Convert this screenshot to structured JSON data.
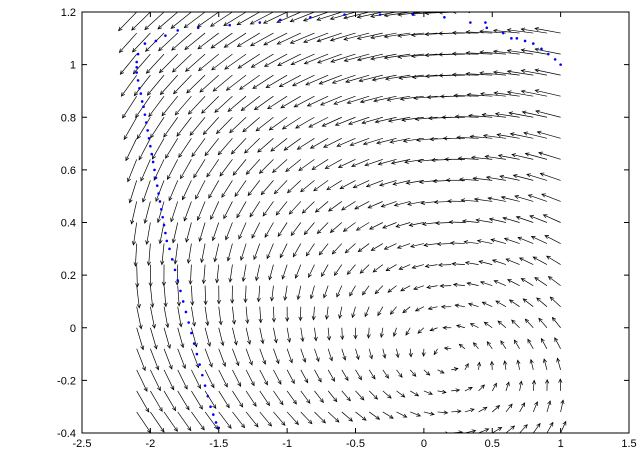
{
  "chart_data": {
    "type": "scatter",
    "title": "",
    "xlabel": "",
    "ylabel": "",
    "xlim": [
      -2.5,
      1.5
    ],
    "ylim": [
      -0.4,
      1.2
    ],
    "x_ticks": [
      "-2.5",
      "-2",
      "-1.5",
      "-1",
      "-0.5",
      "0",
      "0.5",
      "1",
      "1.5"
    ],
    "y_ticks": [
      "-0.4",
      "-0.2",
      "0",
      "0.2",
      "0.4",
      "0.6",
      "0.8",
      "1",
      "1.2"
    ],
    "grid": false,
    "legend": "none",
    "colors": {
      "trajectory": "#0000ff",
      "arrows": "#000000"
    },
    "vector_field": {
      "x_start": -2.1,
      "x_end": 1.0,
      "x_step": 0.1,
      "y_start": -0.4,
      "y_end": 1.2,
      "y_step": 0.08
    },
    "series": [
      {
        "points": [
          [
            1.0,
            1.0
          ],
          [
            0.96,
            1.02
          ],
          [
            0.91,
            1.04
          ],
          [
            0.86,
            1.06
          ],
          [
            0.8,
            1.08
          ],
          [
            0.74,
            1.09
          ],
          [
            0.68,
            1.1
          ],
          [
            0.64,
            1.1
          ],
          [
            0.58,
            1.12
          ],
          [
            0.46,
            1.14
          ],
          [
            0.45,
            1.16
          ],
          [
            0.34,
            1.16
          ],
          [
            0.15,
            1.18
          ],
          [
            -0.08,
            1.19
          ],
          [
            -0.32,
            1.19
          ],
          [
            -0.58,
            1.19
          ],
          [
            -0.83,
            1.18
          ],
          [
            -1.05,
            1.17
          ],
          [
            -1.2,
            1.16
          ],
          [
            -1.42,
            1.15
          ],
          [
            -1.65,
            1.14
          ],
          [
            -1.8,
            1.13
          ],
          [
            -1.89,
            1.11
          ],
          [
            -1.96,
            1.09
          ],
          [
            -2.04,
            1.08
          ],
          [
            -2.09,
            1.04
          ],
          [
            -2.1,
            1.01
          ],
          [
            -2.1,
            0.99
          ],
          [
            -2.1,
            0.97
          ],
          [
            -2.09,
            0.94
          ],
          [
            -2.08,
            0.91
          ],
          [
            -2.07,
            0.89
          ],
          [
            -2.06,
            0.86
          ],
          [
            -2.05,
            0.84
          ],
          [
            -2.04,
            0.81
          ],
          [
            -2.03,
            0.78
          ],
          [
            -2.02,
            0.75
          ],
          [
            -2.01,
            0.72
          ],
          [
            -2.0,
            0.69
          ],
          [
            -1.99,
            0.66
          ],
          [
            -1.98,
            0.63
          ],
          [
            -1.97,
            0.6
          ],
          [
            -1.96,
            0.57
          ],
          [
            -1.95,
            0.54
          ],
          [
            -1.94,
            0.51
          ],
          [
            -1.93,
            0.48
          ],
          [
            -1.92,
            0.45
          ],
          [
            -1.91,
            0.42
          ],
          [
            -1.9,
            0.39
          ],
          [
            -1.89,
            0.36
          ],
          [
            -1.88,
            0.33
          ],
          [
            -1.86,
            0.3
          ],
          [
            -1.84,
            0.26
          ],
          [
            -1.82,
            0.22
          ],
          [
            -1.8,
            0.18
          ],
          [
            -1.78,
            0.14
          ],
          [
            -1.76,
            0.1
          ],
          [
            -1.74,
            0.06
          ],
          [
            -1.72,
            0.02
          ],
          [
            -1.7,
            -0.02
          ],
          [
            -1.68,
            -0.06
          ],
          [
            -1.66,
            -0.1
          ],
          [
            -1.64,
            -0.14
          ],
          [
            -1.62,
            -0.18
          ],
          [
            -1.6,
            -0.22
          ],
          [
            -1.58,
            -0.26
          ],
          [
            -1.56,
            -0.3
          ],
          [
            -1.54,
            -0.33
          ],
          [
            -1.52,
            -0.36
          ],
          [
            -1.5,
            -0.38
          ]
        ]
      }
    ]
  }
}
